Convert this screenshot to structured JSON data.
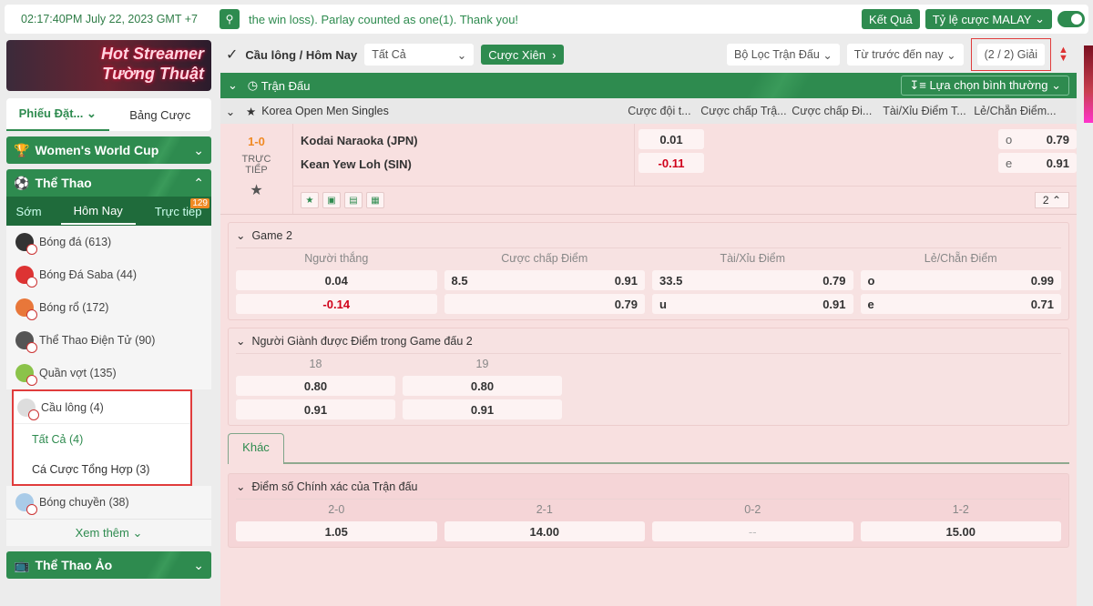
{
  "colors": {
    "accent": "#2e8b4f",
    "negative": "#d0021b",
    "live_score": "#f08a24",
    "highlight_border": "#e03c3c"
  },
  "topbar": {
    "clock": "02:17:40PM July 22, 2023 GMT +7",
    "marquee": "the win loss). Parlay counted as one(1). Thank you!",
    "results_btn": "Kết Quả",
    "odds_type": "Tỷ lệ cược MALAY",
    "search_icon": "search-icon"
  },
  "sidebar": {
    "banner": {
      "line1": "Hot Streamer",
      "line2": "Tường Thuật"
    },
    "slip_tabs": [
      "Phiếu Đặt...",
      "Bảng Cược"
    ],
    "wwc": "Women's World Cup",
    "sports_title": "Thể Thao",
    "tabs": [
      "Sớm",
      "Hôm Nay",
      "Trực tiếp"
    ],
    "live_count": "129",
    "items": [
      {
        "label": "Bóng đá (613)",
        "color": "#333"
      },
      {
        "label": "Bóng Đá Saba (44)",
        "color": "#d33"
      },
      {
        "label": "Bóng rổ (172)",
        "color": "#e8773a"
      },
      {
        "label": "Thể Thao Điện Tử (90)",
        "color": "#555"
      },
      {
        "label": "Quần vợt (135)",
        "color": "#8bc34a"
      }
    ],
    "selected": {
      "label": "Cầu lông",
      "count": "(4)",
      "subs": [
        {
          "label": "Tất Cả",
          "count": "(4)"
        },
        {
          "label": "Cá Cược Tổng Hợp",
          "count": "(3)"
        }
      ]
    },
    "after": {
      "label": "Bóng chuyền (38)"
    },
    "more": "Xem thêm",
    "virtual": "Thể Thao Ảo"
  },
  "main": {
    "breadcrumb": "Cầu lông / Hôm Nay",
    "filter_all": "Tất Cả",
    "parlay": "Cược Xiên",
    "match_filter": "Bộ Lọc Trận Đấu",
    "time_filter": "Từ trước đến nay",
    "leagues": "(2 / 2) Giải",
    "section": "Trận Đấu",
    "choice": "Lựa chọn bình thường",
    "league": "Korea Open Men Singles",
    "col_headers": [
      "Cược đội t...",
      "Cược chấp Trậ...",
      "Cược chấp Đi...",
      "Tài/Xỉu Điểm T...",
      "Lẻ/Chẵn Điểm..."
    ],
    "match": {
      "score": "1-0",
      "status": "TRỰC TIẾP",
      "home": "Kodai Naraoka (JPN)",
      "away": "Kean Yew Loh (SIN)",
      "ml_home": "0.01",
      "ml_away": "-0.11",
      "oe": [
        {
          "k": "o",
          "v": "0.79"
        },
        {
          "k": "e",
          "v": "0.91"
        }
      ],
      "more_count": "2"
    },
    "game2": {
      "title": "Game 2",
      "headers": [
        "Người thắng",
        "Cược chấp Điểm",
        "Tài/Xỉu Điểm",
        "Lẻ/Chẵn Điểm"
      ],
      "rows": [
        [
          {
            "k": "",
            "v": "0.04"
          },
          {
            "k": "8.5",
            "v": "0.91"
          },
          {
            "k": "33.5",
            "v": "0.79"
          },
          {
            "k": "o",
            "v": "0.99"
          }
        ],
        [
          {
            "k": "",
            "v": "-0.14"
          },
          {
            "k": "",
            "v": "0.79"
          },
          {
            "k": "u",
            "v": "0.91"
          },
          {
            "k": "e",
            "v": "0.71"
          }
        ]
      ]
    },
    "points": {
      "title": "Người Giành được Điểm trong Game đấu 2",
      "headers": [
        "18",
        "19"
      ],
      "rows": [
        [
          "0.80",
          "0.80"
        ],
        [
          "0.91",
          "0.91"
        ]
      ]
    },
    "other_tab": "Khác",
    "exact": {
      "title": "Điểm số Chính xác của Trận đấu",
      "headers": [
        "2-0",
        "2-1",
        "0-2",
        "1-2"
      ],
      "values": [
        "1.05",
        "14.00",
        "--",
        "15.00"
      ]
    }
  }
}
